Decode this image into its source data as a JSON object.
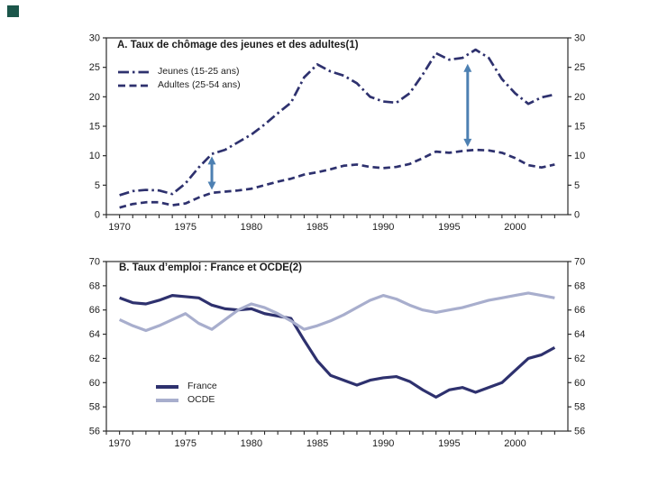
{
  "slide": {
    "background_color": "#ffffff",
    "corner_square_color": "#1b564a"
  },
  "chart_data": [
    {
      "id": "A",
      "type": "line",
      "title": "A. Taux de chômage des jeunes et des adultes(1)",
      "xlabel": "",
      "ylabel": "",
      "xlim": [
        1969,
        2004
      ],
      "ylim": [
        0,
        30
      ],
      "yticks": [
        0,
        5,
        10,
        15,
        20,
        25,
        30
      ],
      "xtick_labels": [
        1970,
        1975,
        1980,
        1985,
        1990,
        1995,
        2000
      ],
      "grid": false,
      "legend_position": "top-left-inside",
      "axis_color": "#2b2b2b",
      "x": [
        1970,
        1971,
        1972,
        1973,
        1974,
        1975,
        1976,
        1977,
        1978,
        1979,
        1980,
        1981,
        1982,
        1983,
        1984,
        1985,
        1986,
        1987,
        1988,
        1989,
        1990,
        1991,
        1992,
        1993,
        1994,
        1995,
        1996,
        1997,
        1998,
        1999,
        2000,
        2001,
        2002,
        2003
      ],
      "series": [
        {
          "name": "Jeunes (15-25 ans)",
          "line_style": "dashdot",
          "color": "#2e316e",
          "values": [
            3.3,
            4.0,
            4.2,
            4.1,
            3.5,
            5.3,
            8.0,
            10.3,
            11.0,
            12.3,
            13.6,
            15.3,
            17.2,
            19.0,
            23.3,
            25.5,
            24.3,
            23.6,
            22.3,
            20.0,
            19.2,
            19.0,
            20.6,
            23.8,
            27.4,
            26.3,
            26.6,
            28.0,
            26.6,
            23.0,
            20.6,
            18.8,
            19.9,
            20.4
          ]
        },
        {
          "name": "Adultes (25-54 ans)",
          "line_style": "dashed",
          "color": "#2e316e",
          "values": [
            1.2,
            1.8,
            2.1,
            2.1,
            1.6,
            1.9,
            2.9,
            3.7,
            3.9,
            4.1,
            4.4,
            5.0,
            5.6,
            6.1,
            6.8,
            7.2,
            7.7,
            8.3,
            8.5,
            8.1,
            7.9,
            8.1,
            8.6,
            9.6,
            10.7,
            10.5,
            10.8,
            11.0,
            10.9,
            10.5,
            9.6,
            8.4,
            8.0,
            8.5
          ]
        }
      ],
      "arrows": [
        {
          "x": 1977,
          "from": 4.2,
          "to": 9.9
        },
        {
          "x": 1996.4,
          "from": 11.5,
          "to": 25.6
        }
      ],
      "arrow_color": "#4d80b2"
    },
    {
      "id": "B",
      "type": "line",
      "title": "B. Taux d’emploi : France et OCDE(2)",
      "xlabel": "",
      "ylabel": "",
      "xlim": [
        1969,
        2004
      ],
      "ylim": [
        56,
        70
      ],
      "yticks": [
        56,
        58,
        60,
        62,
        64,
        66,
        68,
        70
      ],
      "xtick_labels": [
        1970,
        1975,
        1980,
        1985,
        1990,
        1995,
        2000
      ],
      "grid": false,
      "legend_position": "bottom-left-inside",
      "axis_color": "#2b2b2b",
      "x": [
        1970,
        1971,
        1972,
        1973,
        1974,
        1975,
        1976,
        1977,
        1978,
        1979,
        1980,
        1981,
        1982,
        1983,
        1984,
        1985,
        1986,
        1987,
        1988,
        1989,
        1990,
        1991,
        1992,
        1993,
        1994,
        1995,
        1996,
        1997,
        1998,
        1999,
        2000,
        2001,
        2002,
        2003
      ],
      "series": [
        {
          "name": "France",
          "line_style": "solid",
          "color": "#2e316e",
          "values": [
            67.0,
            66.6,
            66.5,
            66.8,
            67.2,
            67.1,
            67.0,
            66.4,
            66.1,
            66.0,
            66.1,
            65.7,
            65.5,
            65.3,
            63.5,
            61.8,
            60.6,
            60.2,
            59.8,
            60.2,
            60.4,
            60.5,
            60.1,
            59.4,
            58.8,
            59.4,
            59.6,
            59.2,
            59.6,
            60.0,
            61.0,
            62.0,
            62.3,
            62.9
          ]
        },
        {
          "name": "OCDE",
          "line_style": "solid",
          "color": "#a8aecd",
          "values": [
            65.2,
            64.7,
            64.3,
            64.7,
            65.2,
            65.7,
            64.9,
            64.4,
            65.2,
            66.0,
            66.5,
            66.2,
            65.7,
            65.1,
            64.4,
            64.7,
            65.1,
            65.6,
            66.2,
            66.8,
            67.2,
            66.9,
            66.4,
            66.0,
            65.8,
            66.0,
            66.2,
            66.5,
            66.8,
            67.0,
            67.2,
            67.4,
            67.2,
            67.0
          ]
        }
      ],
      "arrows": [],
      "arrow_color": "#4d80b2"
    }
  ]
}
